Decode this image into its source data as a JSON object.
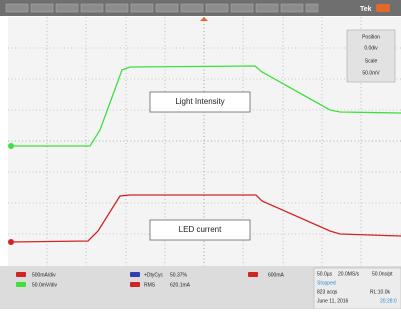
{
  "header": {
    "brand": "Tek"
  },
  "settings_panel": {
    "position_label": "Position",
    "position_value": "0.0div",
    "scale_label": "Scale",
    "scale_value": "50.0mV"
  },
  "annotations": [
    "Light Intensity",
    "LED current"
  ],
  "status": {
    "channel_scales": [
      "500mA/div",
      "50.0mV/div"
    ],
    "measurements": [
      {
        "label": "+DtyCyc",
        "value": "50.37%"
      },
      {
        "label": "RMS",
        "value": "620.1mA"
      }
    ],
    "trigger": "600mA",
    "horizontal": {
      "timebase": "50.0µs",
      "sample_rate": "20.0MS/s",
      "resolution": "50.0ns/pt"
    },
    "acquisition": {
      "state": "Stopped",
      "count": "823 acqs",
      "record_length": "RL:10.0k"
    },
    "date": "June 11, 2016",
    "time": "20:28:0"
  }
}
